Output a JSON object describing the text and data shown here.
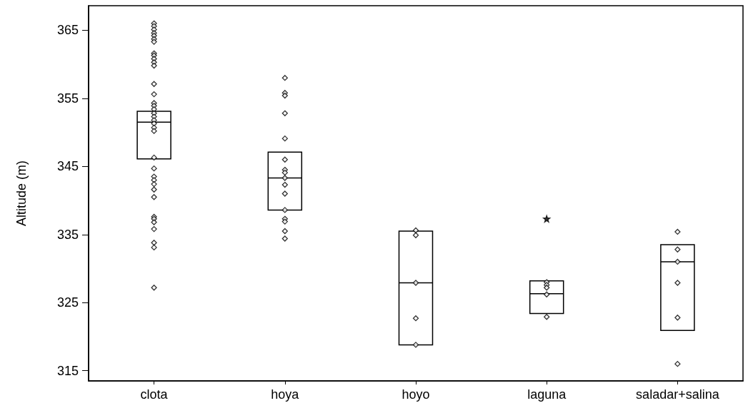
{
  "chart_data": {
    "type": "box",
    "ylabel": "Altitude (m)",
    "color": "#000000",
    "categories": [
      "clota",
      "hoya",
      "hoyo",
      "laguna",
      "saladar+salina"
    ],
    "ylim": [
      313.5,
      368.6
    ],
    "yticks": [
      315,
      325,
      335,
      345,
      355,
      365
    ],
    "boxes": [
      {
        "low": 346.1,
        "q1": 346.1,
        "median": 351.5,
        "q3": 353.1,
        "high": 353.1
      },
      {
        "low": 338.6,
        "q1": 338.6,
        "median": 343.3,
        "q3": 347.1,
        "high": 347.1
      },
      {
        "low": 318.8,
        "q1": 318.8,
        "median": 327.9,
        "q3": 335.5,
        "high": 335.5
      },
      {
        "low": 323.4,
        "q1": 323.4,
        "median": 326.3,
        "q3": 328.2,
        "high": 328.2
      },
      {
        "low": 320.9,
        "q1": 320.9,
        "median": 331.0,
        "q3": 333.5,
        "high": 333.5
      }
    ],
    "series": [
      {
        "type": "scatter",
        "marker": "diamond",
        "color": "#000000",
        "x": [
          "clota",
          "clota",
          "clota",
          "clota",
          "clota",
          "clota",
          "clota",
          "clota",
          "clota",
          "clota",
          "clota",
          "clota",
          "clota",
          "clota",
          "clota",
          "clota",
          "clota",
          "clota",
          "clota",
          "clota",
          "clota",
          "clota",
          "clota",
          "clota",
          "clota",
          "clota",
          "clota",
          "clota",
          "clota",
          "clota",
          "clota",
          "clota",
          "clota",
          "clota",
          "clota",
          "clota",
          "clota",
          "hoya",
          "hoya",
          "hoya",
          "hoya",
          "hoya",
          "hoya",
          "hoya",
          "hoya",
          "hoya",
          "hoya",
          "hoya",
          "hoya",
          "hoya",
          "hoya",
          "hoya",
          "hoya",
          "hoyo",
          "hoyo",
          "hoyo",
          "hoyo",
          "hoyo",
          "laguna",
          "laguna",
          "laguna",
          "laguna",
          "laguna",
          "saladar+salina",
          "saladar+salina",
          "saladar+salina",
          "saladar+salina",
          "saladar+salina",
          "saladar+salina"
        ],
        "values": [
          366.0,
          365.6,
          365.1,
          364.6,
          364.2,
          363.7,
          363.3,
          361.6,
          361.3,
          360.8,
          360.3,
          359.8,
          357.1,
          355.6,
          354.3,
          353.9,
          353.4,
          352.8,
          352.3,
          351.8,
          351.3,
          350.7,
          350.2,
          346.3,
          344.7,
          343.5,
          343.0,
          342.4,
          341.6,
          340.5,
          337.6,
          337.3,
          336.8,
          335.8,
          333.8,
          333.1,
          327.2,
          358.0,
          355.8,
          355.4,
          352.8,
          349.1,
          346.0,
          344.5,
          344.1,
          343.3,
          342.3,
          341.0,
          338.6,
          337.3,
          336.9,
          335.5,
          334.4,
          335.6,
          334.9,
          327.9,
          322.7,
          318.8,
          328.0,
          327.6,
          327.2,
          326.2,
          322.9,
          335.4,
          332.8,
          331.0,
          327.9,
          322.8,
          316.0
        ]
      },
      {
        "type": "scatter",
        "marker": "star",
        "color": "#000000",
        "x": [
          "laguna"
        ],
        "values": [
          337.3
        ]
      }
    ]
  }
}
